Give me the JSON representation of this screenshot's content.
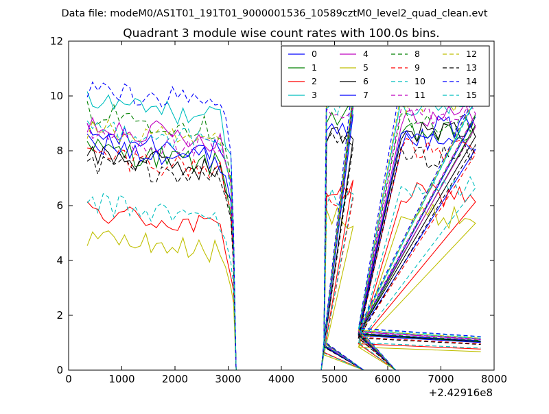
{
  "suptitle": "Data file: modeM0/AS1T01_191T01_9000001536_10589cztM0_level2_quad_clean.evt",
  "chart_data": {
    "type": "line",
    "title": "Quadrant 3 module wise count rates with 100.0s bins.",
    "xlabel": "",
    "ylabel": "",
    "x_offset_label": "+2.42916e8",
    "xlim": [
      0,
      8000
    ],
    "ylim": [
      0,
      12
    ],
    "xticks": [
      0,
      1000,
      2000,
      3000,
      4000,
      5000,
      6000,
      7000,
      8000
    ],
    "yticks": [
      0,
      2,
      4,
      6,
      8,
      10,
      12
    ],
    "legend_position": "top-right",
    "segments": [
      {
        "start": 350,
        "end": 3050,
        "step": 100
      },
      {
        "start": 4850,
        "end": 5350,
        "step": 100
      },
      {
        "start": 6250,
        "end": 7650,
        "step": 100
      }
    ],
    "zero_ranges": [
      [
        3150,
        4750
      ],
      [
        5550,
        6150
      ]
    ],
    "drop_points": [
      {
        "x": 3100,
        "frac": 0.5
      },
      {
        "x": 4800,
        "frac": 0.1
      },
      {
        "x": 5450,
        "frac": 0.15
      },
      {
        "x": 6200,
        "frac": 0.06
      },
      {
        "x": 7750,
        "frac": 0.12
      }
    ],
    "series": [
      {
        "name": "0",
        "color": "#0000ff",
        "dash": "solid",
        "levels": [
          8.6,
          10.0,
          8.4
        ]
      },
      {
        "name": "1",
        "color": "#008000",
        "dash": "solid",
        "levels": [
          8.1,
          9.2,
          8.6
        ]
      },
      {
        "name": "2",
        "color": "#ff0000",
        "dash": "solid",
        "levels": [
          5.8,
          6.5,
          6.4
        ]
      },
      {
        "name": "3",
        "color": "#00bfbf",
        "dash": "solid",
        "levels": [
          9.8,
          10.2,
          9.6
        ]
      },
      {
        "name": "4",
        "color": "#bf00bf",
        "dash": "solid",
        "levels": [
          9.0,
          10.0,
          9.3
        ]
      },
      {
        "name": "5",
        "color": "#bfbf00",
        "dash": "solid",
        "levels": [
          4.9,
          5.6,
          5.6
        ]
      },
      {
        "name": "6",
        "color": "#000000",
        "dash": "solid",
        "levels": [
          7.9,
          8.6,
          8.7
        ]
      },
      {
        "name": "7",
        "color": "#0000ff",
        "dash": "solid",
        "levels": [
          8.3,
          8.9,
          8.9
        ]
      },
      {
        "name": "8",
        "color": "#008000",
        "dash": "dashed",
        "levels": [
          9.4,
          10.2,
          9.0
        ]
      },
      {
        "name": "9",
        "color": "#ff0000",
        "dash": "dashed",
        "levels": [
          7.9,
          6.4,
          8.0
        ]
      },
      {
        "name": "10",
        "color": "#00bfbf",
        "dash": "dashed",
        "levels": [
          6.1,
          6.2,
          6.7
        ]
      },
      {
        "name": "11",
        "color": "#bf00bf",
        "dash": "dashed",
        "levels": [
          8.6,
          9.3,
          9.4
        ]
      },
      {
        "name": "12",
        "color": "#bfbf00",
        "dash": "dashed",
        "levels": [
          8.8,
          10.5,
          9.7
        ]
      },
      {
        "name": "13",
        "color": "#000000",
        "dash": "dashed",
        "levels": [
          7.6,
          8.4,
          7.8
        ]
      },
      {
        "name": "14",
        "color": "#0000ff",
        "dash": "dashed",
        "levels": [
          10.3,
          10.6,
          10.2
        ]
      },
      {
        "name": "15",
        "color": "#00bfbf",
        "dash": "dashed",
        "levels": [
          8.9,
          9.6,
          10.0
        ]
      }
    ]
  }
}
